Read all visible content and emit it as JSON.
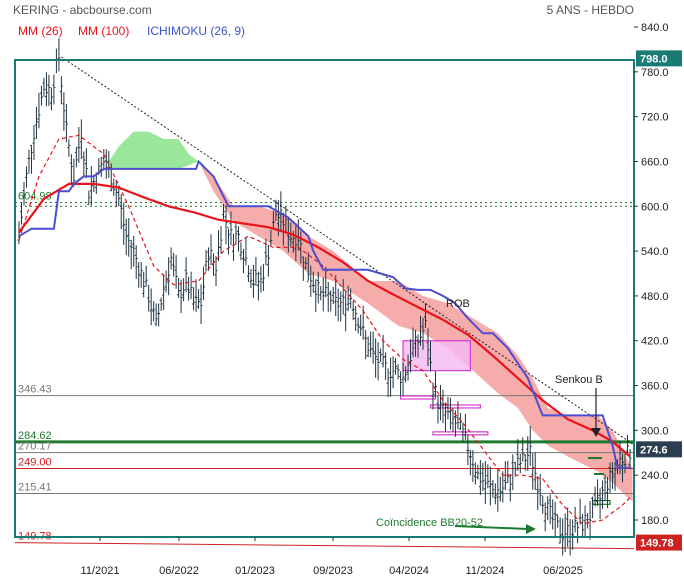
{
  "header": {
    "title": "KERING - abcbourse.com",
    "period": "5 ANS - HEBDO"
  },
  "legend": [
    {
      "label": "MM (26)",
      "color": "#e8131b"
    },
    {
      "label": "MM (100)",
      "color": "#e8131b"
    },
    {
      "label": "ICHIMOKU (26, 9)",
      "color": "#3a53c4"
    }
  ],
  "colors": {
    "price": "#1f3340",
    "mm26": "#e8131b",
    "mm100": "#e8131b",
    "kijun": "#4b4fcf",
    "cloud_bull": "#8fe38f",
    "cloud_bear": "#f6a3a3",
    "frame": "#1a7a74",
    "level_green": "#1f7a2e",
    "level_red": "#cc2222",
    "level_grey": "#777777",
    "box_magenta": "#d43bd4"
  },
  "chart_data": {
    "type": "candlestick",
    "ylim": [
      140,
      840
    ],
    "y_ticks": [
      "840.0",
      "780.0",
      "720.0",
      "660.0",
      "600.0",
      "540.0",
      "480.0",
      "420.0",
      "360.0",
      "300.0",
      "240.0",
      "180.0"
    ],
    "x_ticks": [
      "11/2021",
      "06/2022",
      "01/2023",
      "09/2023",
      "04/2024",
      "11/2024",
      "06/2025"
    ],
    "tag_high": "798.0",
    "tag_last": "274.6",
    "tag_low": "149.78",
    "levels": [
      {
        "label": "604.98",
        "value": 604.98,
        "color": "#1f7a2e",
        "style": "dotted"
      },
      {
        "label": "346.43",
        "value": 346.43,
        "color": "#777777",
        "style": "solid"
      },
      {
        "label": "284.62",
        "value": 284.62,
        "color": "#1f7a2e",
        "style": "thick"
      },
      {
        "label": "270.17",
        "value": 270.17,
        "color": "#777777",
        "style": "solid"
      },
      {
        "label": "249.00",
        "value": 249.0,
        "color": "#cc2222",
        "style": "solid"
      },
      {
        "label": "215.41",
        "value": 215.41,
        "color": "#777777",
        "style": "solid"
      },
      {
        "label": "149.78",
        "value": 149.78,
        "color": "#cc2222",
        "style": "solid"
      }
    ],
    "annotations": {
      "rob": "ROB",
      "senkou": "Senkou B",
      "coincidence": "Coïncidence BB20-52"
    },
    "price_anchors": [
      [
        0,
        560
      ],
      [
        3,
        640
      ],
      [
        6,
        700
      ],
      [
        10,
        760
      ],
      [
        13,
        755
      ],
      [
        16,
        800
      ],
      [
        19,
        700
      ],
      [
        22,
        640
      ],
      [
        25,
        700
      ],
      [
        28,
        620
      ],
      [
        31,
        640
      ],
      [
        34,
        660
      ],
      [
        37,
        640
      ],
      [
        40,
        610
      ],
      [
        43,
        560
      ],
      [
        46,
        540
      ],
      [
        49,
        510
      ],
      [
        52,
        480
      ],
      [
        55,
        440
      ],
      [
        58,
        490
      ],
      [
        61,
        530
      ],
      [
        64,
        480
      ],
      [
        67,
        500
      ],
      [
        70,
        470
      ],
      [
        73,
        470
      ],
      [
        76,
        540
      ],
      [
        79,
        520
      ],
      [
        82,
        590
      ],
      [
        85,
        560
      ],
      [
        88,
        560
      ],
      [
        91,
        530
      ],
      [
        94,
        500
      ],
      [
        97,
        500
      ],
      [
        100,
        540
      ],
      [
        103,
        590
      ],
      [
        106,
        580
      ],
      [
        109,
        560
      ],
      [
        112,
        560
      ],
      [
        115,
        520
      ],
      [
        118,
        500
      ],
      [
        121,
        480
      ],
      [
        124,
        480
      ],
      [
        127,
        470
      ],
      [
        130,
        470
      ],
      [
        133,
        480
      ],
      [
        136,
        450
      ],
      [
        139,
        420
      ],
      [
        142,
        400
      ],
      [
        145,
        390
      ],
      [
        148,
        380
      ],
      [
        151,
        380
      ],
      [
        154,
        370
      ],
      [
        157,
        400
      ],
      [
        160,
        420
      ],
      [
        163,
        440
      ],
      [
        166,
        360
      ],
      [
        169,
        330
      ],
      [
        172,
        320
      ],
      [
        175,
        310
      ],
      [
        178,
        295
      ],
      [
        181,
        270
      ],
      [
        184,
        240
      ],
      [
        187,
        230
      ],
      [
        190,
        220
      ],
      [
        193,
        220
      ],
      [
        196,
        230
      ],
      [
        199,
        250
      ],
      [
        202,
        260
      ],
      [
        205,
        270
      ],
      [
        208,
        230
      ],
      [
        211,
        200
      ],
      [
        214,
        180
      ],
      [
        217,
        165
      ],
      [
        220,
        165
      ],
      [
        223,
        170
      ],
      [
        226,
        175
      ],
      [
        229,
        185
      ],
      [
        232,
        200
      ],
      [
        235,
        225
      ],
      [
        238,
        240
      ],
      [
        241,
        260
      ],
      [
        244,
        268
      ],
      [
        245,
        272
      ]
    ],
    "mm26_anchors": [
      [
        0,
        555
      ],
      [
        8,
        640
      ],
      [
        16,
        690
      ],
      [
        24,
        695
      ],
      [
        34,
        670
      ],
      [
        44,
        600
      ],
      [
        54,
        520
      ],
      [
        62,
        495
      ],
      [
        72,
        500
      ],
      [
        82,
        540
      ],
      [
        92,
        560
      ],
      [
        102,
        545
      ],
      [
        112,
        545
      ],
      [
        122,
        520
      ],
      [
        130,
        490
      ],
      [
        138,
        460
      ],
      [
        146,
        420
      ],
      [
        154,
        395
      ],
      [
        162,
        380
      ],
      [
        170,
        340
      ],
      [
        178,
        310
      ],
      [
        186,
        275
      ],
      [
        194,
        240
      ],
      [
        202,
        240
      ],
      [
        210,
        235
      ],
      [
        218,
        200
      ],
      [
        226,
        175
      ],
      [
        234,
        180
      ],
      [
        242,
        200
      ],
      [
        245,
        210
      ]
    ],
    "mm100_anchors": [
      [
        0,
        565
      ],
      [
        10,
        610
      ],
      [
        20,
        630
      ],
      [
        30,
        630
      ],
      [
        40,
        625
      ],
      [
        50,
        612
      ],
      [
        60,
        600
      ],
      [
        70,
        592
      ],
      [
        80,
        582
      ],
      [
        90,
        577
      ],
      [
        100,
        572
      ],
      [
        110,
        562
      ],
      [
        120,
        545
      ],
      [
        130,
        525
      ],
      [
        140,
        500
      ],
      [
        150,
        482
      ],
      [
        160,
        465
      ],
      [
        170,
        448
      ],
      [
        180,
        428
      ],
      [
        190,
        400
      ],
      [
        200,
        370
      ],
      [
        210,
        340
      ],
      [
        220,
        315
      ],
      [
        230,
        300
      ],
      [
        238,
        285
      ],
      [
        245,
        265
      ]
    ],
    "kijun_anchors": [
      [
        0,
        560
      ],
      [
        5,
        570
      ],
      [
        12,
        570
      ],
      [
        14,
        570
      ],
      [
        16,
        620
      ],
      [
        20,
        620
      ],
      [
        22,
        630
      ],
      [
        26,
        640
      ],
      [
        30,
        640
      ],
      [
        34,
        650
      ],
      [
        38,
        650
      ],
      [
        40,
        650
      ],
      [
        46,
        650
      ],
      [
        50,
        650
      ],
      [
        54,
        650
      ],
      [
        58,
        650
      ],
      [
        62,
        650
      ],
      [
        66,
        650
      ],
      [
        70,
        650
      ],
      [
        71,
        650
      ],
      [
        72,
        660
      ],
      [
        78,
        640
      ],
      [
        84,
        600
      ],
      [
        92,
        600
      ],
      [
        100,
        600
      ],
      [
        108,
        585
      ],
      [
        116,
        560
      ],
      [
        118,
        540
      ],
      [
        122,
        515
      ],
      [
        126,
        515
      ],
      [
        140,
        515
      ],
      [
        150,
        505
      ],
      [
        155,
        490
      ],
      [
        160,
        488
      ],
      [
        165,
        488
      ],
      [
        170,
        480
      ],
      [
        175,
        470
      ],
      [
        180,
        450
      ],
      [
        186,
        430
      ],
      [
        190,
        430
      ],
      [
        196,
        410
      ],
      [
        200,
        390
      ],
      [
        204,
        370
      ],
      [
        210,
        320
      ],
      [
        216,
        320
      ],
      [
        224,
        320
      ],
      [
        230,
        320
      ],
      [
        234,
        320
      ],
      [
        238,
        280
      ],
      [
        240,
        250
      ],
      [
        245,
        250
      ]
    ],
    "cloud_bull_top": [
      [
        36,
        660
      ],
      [
        40,
        680
      ],
      [
        46,
        700
      ],
      [
        52,
        700
      ],
      [
        58,
        690
      ],
      [
        64,
        690
      ],
      [
        68,
        670
      ],
      [
        72,
        660
      ]
    ],
    "cloud_bull_bottom": [
      [
        36,
        650
      ],
      [
        40,
        650
      ],
      [
        46,
        650
      ],
      [
        52,
        650
      ],
      [
        58,
        650
      ],
      [
        64,
        650
      ],
      [
        68,
        655
      ],
      [
        72,
        660
      ]
    ],
    "cloud_bear_top": [
      [
        72,
        660
      ],
      [
        78,
        640
      ],
      [
        86,
        600
      ],
      [
        96,
        600
      ],
      [
        106,
        590
      ],
      [
        116,
        560
      ],
      [
        126,
        540
      ],
      [
        140,
        500
      ],
      [
        152,
        500
      ],
      [
        162,
        480
      ],
      [
        172,
        470
      ],
      [
        182,
        450
      ],
      [
        192,
        430
      ],
      [
        200,
        400
      ],
      [
        206,
        370
      ],
      [
        212,
        330
      ],
      [
        220,
        320
      ],
      [
        226,
        320
      ],
      [
        232,
        320
      ],
      [
        238,
        300
      ],
      [
        244,
        260
      ],
      [
        246,
        250
      ]
    ],
    "cloud_bear_bottom": [
      [
        72,
        660
      ],
      [
        78,
        620
      ],
      [
        86,
        580
      ],
      [
        96,
        560
      ],
      [
        106,
        540
      ],
      [
        116,
        510
      ],
      [
        126,
        500
      ],
      [
        140,
        470
      ],
      [
        152,
        440
      ],
      [
        162,
        430
      ],
      [
        172,
        410
      ],
      [
        182,
        380
      ],
      [
        192,
        350
      ],
      [
        200,
        330
      ],
      [
        206,
        300
      ],
      [
        212,
        280
      ],
      [
        220,
        265
      ],
      [
        226,
        255
      ],
      [
        232,
        245
      ],
      [
        238,
        230
      ],
      [
        244,
        210
      ],
      [
        246,
        205
      ]
    ],
    "trendline": [
      [
        17,
        800
      ],
      [
        246,
        282
      ]
    ],
    "boxes": [
      {
        "x0": 154,
        "x1": 181,
        "y0": 380,
        "y1": 420,
        "fill": true
      },
      {
        "x0": 153,
        "x1": 167,
        "y0": 342,
        "y1": 346,
        "fill": false
      },
      {
        "x0": 165,
        "x1": 185,
        "y0": 330,
        "y1": 334,
        "fill": false
      },
      {
        "x0": 166,
        "x1": 188,
        "y0": 294,
        "y1": 298,
        "fill": false
      },
      {
        "x0": 230,
        "x1": 237,
        "y0": 201,
        "y1": 206,
        "fill": false
      }
    ]
  }
}
